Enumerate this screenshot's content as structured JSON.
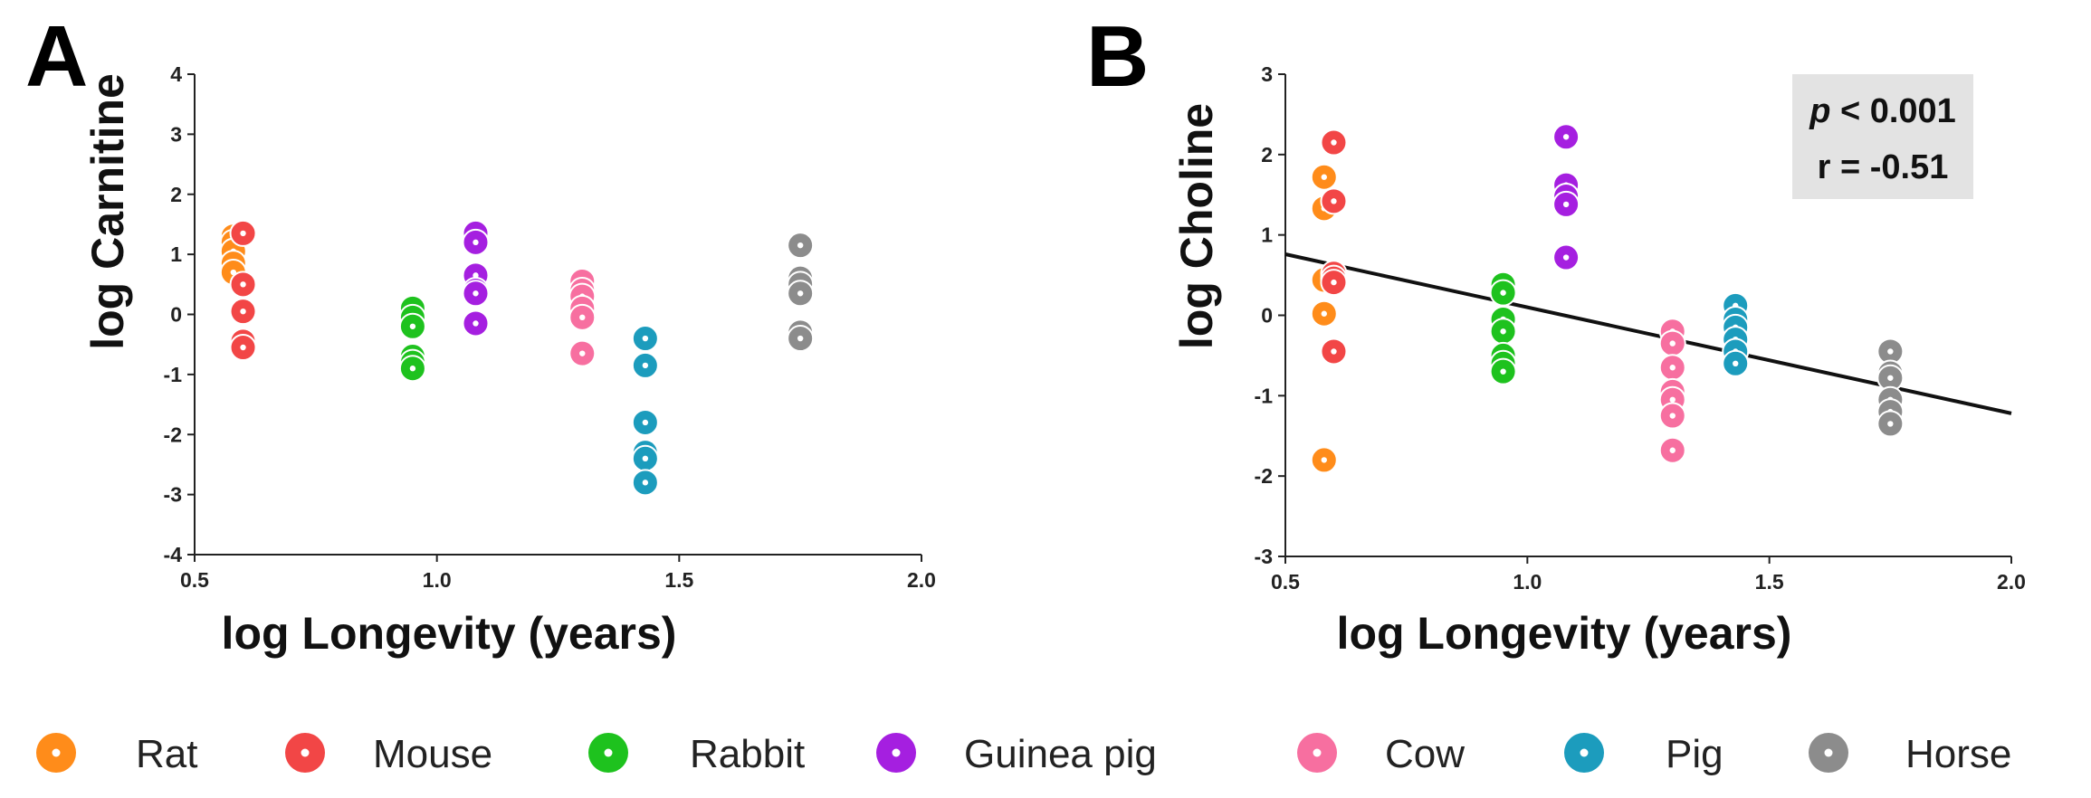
{
  "panels": [
    {
      "letter": "A",
      "xlabel": "log Longevity (years)",
      "ylabel": "log Carnitine"
    },
    {
      "letter": "B",
      "xlabel": "log Longevity (years)",
      "ylabel": "log Choline",
      "stat_p_italic": "p",
      "stat_p_rest": " < 0.001",
      "stat_r": "r = -0.51"
    }
  ],
  "legend": [
    {
      "name": "Rat",
      "color": "#ff8c1a"
    },
    {
      "name": "Mouse",
      "color": "#f24646"
    },
    {
      "name": "Rabbit",
      "color": "#1ec21e"
    },
    {
      "name": "Guinea pig",
      "color": "#a51fe0"
    },
    {
      "name": "Cow",
      "color": "#f76fa0"
    },
    {
      "name": "Pig",
      "color": "#1c9cbd"
    },
    {
      "name": "Horse",
      "color": "#8c8c8c"
    }
  ],
  "chart_data": [
    {
      "type": "scatter",
      "ylabel": "log Carnitine",
      "xlabel": "log Longevity (years)",
      "xlim": [
        0.5,
        2.0
      ],
      "ylim": [
        -4,
        4
      ],
      "xticks": [
        "0.5",
        "1.0",
        "1.5",
        "2.0"
      ],
      "yticks": [
        "-4",
        "-3",
        "-2",
        "-1",
        "0",
        "1",
        "2",
        "3",
        "4"
      ],
      "series": [
        {
          "name": "Rat",
          "x": [
            0.58,
            0.58,
            0.58,
            0.58,
            0.58
          ],
          "y": [
            1.3,
            1.2,
            1.05,
            0.85,
            0.7
          ]
        },
        {
          "name": "Mouse",
          "x": [
            0.6,
            0.6,
            0.6,
            0.6,
            0.6
          ],
          "y": [
            1.35,
            0.5,
            0.05,
            -0.45,
            -0.55
          ]
        },
        {
          "name": "Rabbit",
          "x": [
            0.95,
            0.95,
            0.95,
            0.95,
            0.95,
            0.95
          ],
          "y": [
            0.1,
            -0.05,
            -0.2,
            -0.7,
            -0.8,
            -0.9
          ]
        },
        {
          "name": "Guinea pig",
          "x": [
            1.08,
            1.08,
            1.08,
            1.08,
            1.08,
            1.08
          ],
          "y": [
            1.35,
            1.2,
            0.65,
            0.4,
            0.35,
            -0.15
          ]
        },
        {
          "name": "Cow",
          "x": [
            1.3,
            1.3,
            1.3,
            1.3,
            1.3,
            1.3
          ],
          "y": [
            0.55,
            0.4,
            0.3,
            0.1,
            -0.05,
            -0.65
          ]
        },
        {
          "name": "Pig",
          "x": [
            1.43,
            1.43,
            1.43,
            1.43,
            1.43,
            1.43
          ],
          "y": [
            -0.4,
            -0.85,
            -1.8,
            -2.3,
            -2.4,
            -2.8
          ]
        },
        {
          "name": "Horse",
          "x": [
            1.75,
            1.75,
            1.75,
            1.75,
            1.75,
            1.75
          ],
          "y": [
            1.15,
            0.6,
            0.5,
            0.35,
            -0.3,
            -0.4
          ]
        }
      ]
    },
    {
      "type": "scatter",
      "ylabel": "log Choline",
      "xlabel": "log Longevity (years)",
      "xlim": [
        0.5,
        2.0
      ],
      "ylim": [
        -3,
        3
      ],
      "xticks": [
        "0.5",
        "1.0",
        "1.5",
        "2.0"
      ],
      "yticks": [
        "-3",
        "-2",
        "-1",
        "0",
        "1",
        "2",
        "3"
      ],
      "annotation": {
        "p": "p < 0.001",
        "r": "r = -0.51"
      },
      "regression": {
        "x": [
          0.5,
          2.0
        ],
        "y": [
          0.76,
          -1.22
        ]
      },
      "series": [
        {
          "name": "Rat",
          "x": [
            0.58,
            0.58,
            0.58,
            0.58,
            0.58
          ],
          "y": [
            1.72,
            1.33,
            0.44,
            0.02,
            -1.8
          ]
        },
        {
          "name": "Mouse",
          "x": [
            0.6,
            0.6,
            0.6,
            0.6,
            0.6,
            0.6
          ],
          "y": [
            2.15,
            1.42,
            0.52,
            0.46,
            0.41,
            -0.45
          ]
        },
        {
          "name": "Rabbit",
          "x": [
            0.95,
            0.95,
            0.95,
            0.95,
            0.95,
            0.95,
            0.95
          ],
          "y": [
            0.38,
            0.28,
            -0.05,
            -0.2,
            -0.5,
            -0.6,
            -0.7
          ]
        },
        {
          "name": "Guinea pig",
          "x": [
            1.08,
            1.08,
            1.08,
            1.08,
            1.08
          ],
          "y": [
            2.22,
            1.62,
            1.48,
            1.38,
            0.72
          ]
        },
        {
          "name": "Cow",
          "x": [
            1.3,
            1.3,
            1.3,
            1.3,
            1.3,
            1.3,
            1.3
          ],
          "y": [
            -0.2,
            -0.35,
            -0.65,
            -0.95,
            -1.05,
            -1.25,
            -1.68
          ]
        },
        {
          "name": "Pig",
          "x": [
            1.43,
            1.43,
            1.43,
            1.43,
            1.43,
            1.43
          ],
          "y": [
            0.12,
            -0.05,
            -0.15,
            -0.3,
            -0.45,
            -0.6
          ]
        },
        {
          "name": "Horse",
          "x": [
            1.75,
            1.75,
            1.75,
            1.75,
            1.75,
            1.75
          ],
          "y": [
            -0.45,
            -0.72,
            -0.78,
            -1.05,
            -1.2,
            -1.35
          ]
        }
      ]
    }
  ]
}
